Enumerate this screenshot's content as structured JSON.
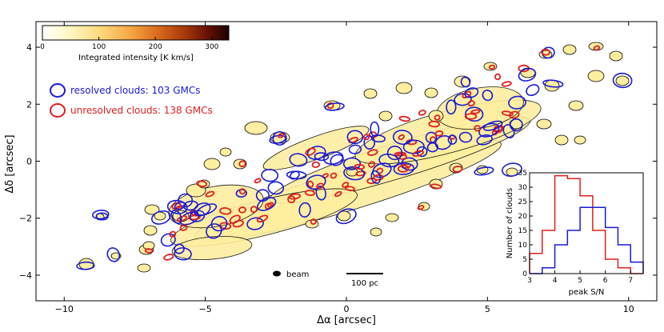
{
  "chart_data": [
    {
      "type": "map",
      "xlabel": "Δα [arcsec]",
      "ylabel": "Δδ [arcsec]",
      "xlim": [
        -11,
        11
      ],
      "ylim": [
        -4.9,
        4.9
      ],
      "x_inverted": true,
      "xticks": [
        -10,
        -5,
        0,
        5,
        10
      ],
      "yticks": [
        -4,
        -2,
        0,
        2,
        4
      ],
      "colorbar": {
        "label": "Integrated intensity [K km/s]",
        "range": [
          0,
          330
        ],
        "ticks": [
          0,
          100,
          200,
          300
        ],
        "colormap": "afmhot_r"
      },
      "legend": [
        {
          "label": "resolved clouds: 103 GMCs",
          "color": "#1a1ad6"
        },
        {
          "label": "unresolved clouds: 138 GMCs",
          "color": "#e01e1e"
        }
      ],
      "annotations": {
        "beam": "beam",
        "scalebar": "100 pc"
      }
    },
    {
      "type": "histogram",
      "xlabel": "peak S/N",
      "ylabel": "Number of clouds",
      "xlim": [
        3,
        7.5
      ],
      "ylim": [
        0,
        35
      ],
      "xticks": [
        3,
        4,
        5,
        6,
        7
      ],
      "yticks": [
        0,
        5,
        10,
        15,
        20,
        25,
        30,
        35
      ],
      "bin_edges": [
        3.0,
        3.5,
        4.0,
        4.5,
        5.0,
        5.5,
        6.0,
        6.5,
        7.0,
        7.5
      ],
      "series": [
        {
          "name": "unresolved",
          "color": "#e01e1e",
          "values": [
            7,
            15,
            34,
            33,
            27,
            15,
            5,
            2,
            0
          ]
        },
        {
          "name": "resolved",
          "color": "#1a1ad6",
          "values": [
            0,
            2,
            10,
            15,
            23,
            23,
            16,
            10,
            4
          ]
        }
      ]
    }
  ],
  "colors": {
    "resolved": "#1a1ad6",
    "unresolved": "#e01e1e",
    "emission_fill": "#fdeea0",
    "frame": "#000000"
  }
}
